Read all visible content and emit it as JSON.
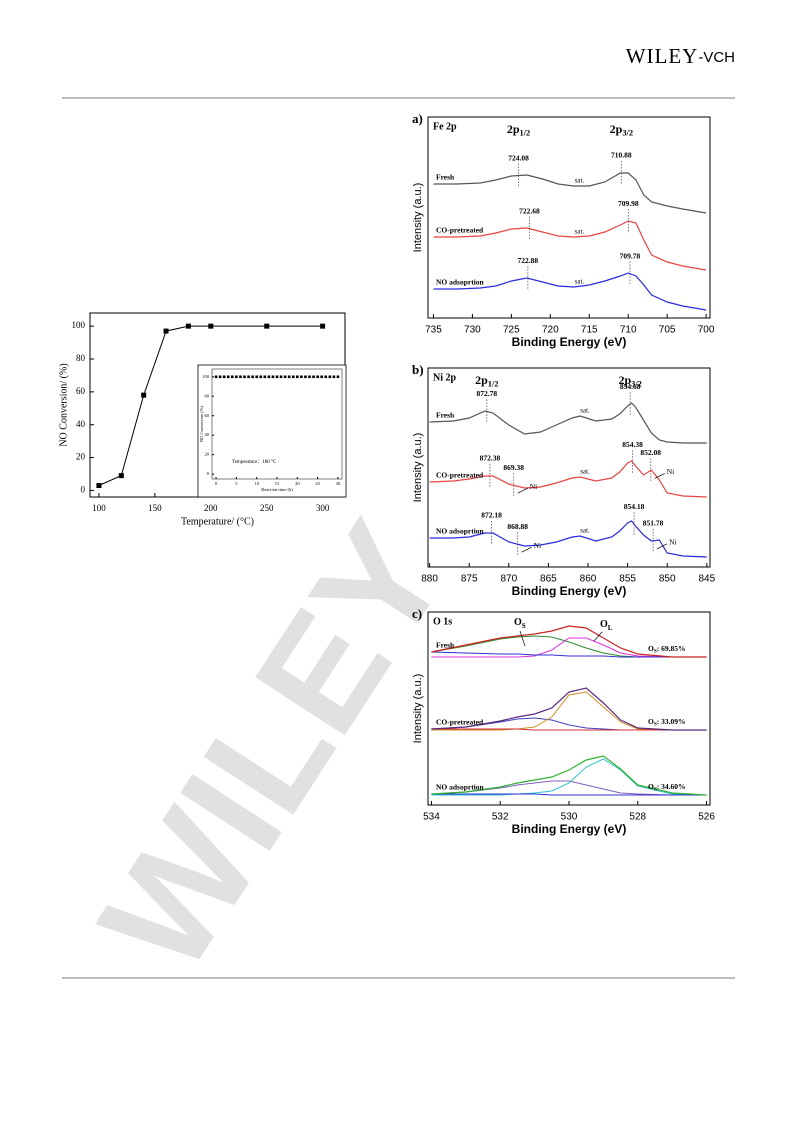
{
  "header": {
    "logo_main": "WILEY",
    "logo_sub": "-VCH"
  },
  "watermark": "WILEY",
  "chart_data": [
    {
      "type": "line",
      "x": [
        100,
        120,
        140,
        160,
        180,
        200,
        250,
        300
      ],
      "values": [
        3,
        9,
        58,
        97,
        100,
        100,
        100,
        100
      ],
      "color": "#000000",
      "marker": "square",
      "xlim": [
        92,
        320
      ],
      "ylim": [
        -4,
        108
      ],
      "xticks": [
        100,
        150,
        200,
        250,
        300
      ],
      "yticks": [
        0,
        20,
        40,
        60,
        80,
        100
      ],
      "xlabel": "Temperature/ (°C)",
      "ylabel": "NO Conversion/ (%)"
    },
    {
      "type": "scatter",
      "x": [
        0,
        1,
        2,
        3,
        4,
        5,
        6,
        7,
        8,
        9,
        10,
        11,
        12,
        13,
        14,
        15,
        16,
        17,
        18,
        19,
        20,
        21,
        22,
        23,
        24,
        25,
        26,
        27,
        28,
        29,
        30
      ],
      "values": [
        100,
        100,
        100,
        100,
        100,
        100,
        100,
        100,
        100,
        100,
        100,
        100,
        100,
        100,
        100,
        100,
        100,
        100,
        100,
        100,
        100,
        100,
        100,
        100,
        100,
        100,
        100,
        100,
        100,
        100,
        100
      ],
      "color": "#000000",
      "marker": "square",
      "xlim": [
        -1,
        31
      ],
      "ylim": [
        -5,
        108
      ],
      "xticks": [
        0,
        5,
        10,
        15,
        20,
        25,
        30
      ],
      "yticks": [
        0,
        20,
        40,
        60,
        80,
        100
      ],
      "xlabel": "Reaction time (h)",
      "ylabel": "NO Conversion (%)",
      "annotation": "Temperature：180 °C"
    },
    {
      "type": "line",
      "panel_label": "a)",
      "title": "Fe 2p",
      "headings": [
        {
          "main": "2p",
          "sub": "1/2"
        },
        {
          "main": "2p",
          "sub": "3/2"
        }
      ],
      "xlim": [
        735.7,
        699.5
      ],
      "ylim": [
        0,
        201
      ],
      "xticks": [
        735,
        730,
        725,
        720,
        715,
        710,
        705,
        700
      ],
      "xlabel": "Binding Energy (eV)",
      "ylabel": "Intensity (a.u.)",
      "sat_label": "sat.",
      "x": [
        735,
        732,
        729,
        727,
        725,
        723,
        721,
        719,
        717,
        715,
        713,
        711,
        710,
        709,
        708,
        707,
        705,
        703,
        700
      ],
      "series": [
        {
          "name": "Fresh",
          "color": "#555555",
          "values": [
            134,
            134,
            135,
            138,
            142,
            143,
            139,
            134,
            132,
            132,
            136,
            145,
            145,
            138,
            123,
            116,
            112,
            109,
            105
          ],
          "peaks": [
            724.08,
            710.88
          ]
        },
        {
          "name": "CO-pretreated",
          "color": "#e84444",
          "values": [
            81,
            81,
            82,
            85,
            89,
            90,
            86,
            82,
            81,
            82,
            86,
            93,
            97,
            95,
            78,
            63,
            56,
            52,
            48
          ],
          "peaks": [
            722.68,
            709.98
          ]
        },
        {
          "name": "NO adsoprtion",
          "color": "#2a2ae0",
          "values": [
            29,
            29,
            30,
            32,
            37,
            40,
            36,
            32,
            31,
            33,
            37,
            42,
            45,
            42,
            33,
            23,
            16,
            12,
            8
          ],
          "peaks": [
            722.88,
            709.78
          ]
        }
      ]
    },
    {
      "type": "line",
      "panel_label": "b)",
      "title": "Ni 2p",
      "headings": [
        {
          "main": "2p",
          "sub": "1/2"
        },
        {
          "main": "2p",
          "sub": "3/2"
        }
      ],
      "xlim": [
        880.2,
        844.6
      ],
      "ylim": [
        0,
        199
      ],
      "xticks": [
        880,
        875,
        870,
        865,
        860,
        855,
        850,
        845
      ],
      "xlabel": "Binding Energy (eV)",
      "ylabel": "Intensity (a.u.)",
      "sat_label": "sat.",
      "minor_label": "Ni",
      "x": [
        880,
        877,
        875,
        873,
        872,
        870,
        868,
        866,
        864,
        862,
        861,
        859,
        857,
        856,
        855,
        854.5,
        854,
        853,
        852,
        851,
        850,
        848,
        845
      ],
      "series": [
        {
          "name": "Fresh",
          "color": "#555555",
          "values": [
            145,
            146,
            149,
            156,
            154,
            142,
            133,
            135,
            142,
            149,
            151,
            146,
            148,
            153,
            161,
            164,
            160,
            147,
            134,
            127,
            125,
            124,
            124
          ],
          "peaks": [
            872.78,
            854.68
          ]
        },
        {
          "name": "CO-pretreated",
          "color": "#e84444",
          "values": [
            85,
            86,
            88,
            91,
            91,
            83,
            79,
            80,
            84,
            89,
            90,
            86,
            89,
            95,
            104,
            106,
            101,
            92,
            97,
            87,
            74,
            71,
            70
          ],
          "peaks": [
            872.38,
            854.38
          ],
          "minor_peaks": [
            869.38,
            852.08
          ]
        },
        {
          "name": "NO adsoprtion",
          "color": "#2a2ae0",
          "values": [
            29,
            29,
            30,
            34,
            34,
            25,
            21,
            22,
            25,
            30,
            31,
            26,
            30,
            36,
            44,
            46,
            41,
            32,
            26,
            27,
            14,
            11,
            10
          ],
          "peaks": [
            872.18,
            854.18
          ],
          "minor_peaks": [
            868.88,
            851.78
          ]
        }
      ]
    },
    {
      "type": "line",
      "panel_label": "c)",
      "title": "O 1s",
      "os_label": {
        "main": "O",
        "sub": "S"
      },
      "ol_label": {
        "main": "O",
        "sub": "L"
      },
      "xlim": [
        534.1,
        525.9
      ],
      "ylim": [
        0,
        193
      ],
      "xticks": [
        534,
        532,
        530,
        528,
        526
      ],
      "xlabel": "Binding Energy (eV)",
      "ylabel": "Intensity (a.u.)",
      "x": [
        534,
        533,
        532,
        531.5,
        531,
        530.5,
        530,
        529.5,
        529,
        528.5,
        528,
        527,
        526
      ],
      "series": [
        {
          "name": "Fresh",
          "color": "#cc2222",
          "values": [
            153,
            160,
            167,
            169,
            171,
            174,
            179,
            177,
            167,
            157,
            151,
            148,
            148
          ],
          "ratio": {
            "main": "O",
            "sub": "S",
            "rest": ": 69.85%"
          },
          "components": [
            {
              "color": "#2e8b2e",
              "values": [
                153,
                159,
                166,
                168,
                169,
                168,
                163,
                157,
                152,
                149,
                148,
                148,
                148
              ]
            },
            {
              "color": "#e030e0",
              "values": [
                148,
                148,
                148,
                148,
                149,
                155,
                167,
                167,
                160,
                152,
                149,
                148,
                148
              ]
            },
            {
              "color": "#3030d0",
              "values": [
                153,
                152,
                151,
                151,
                150,
                150,
                149,
                149,
                149,
                148,
                148,
                148,
                148
              ]
            }
          ]
        },
        {
          "name": "CO-pretreated",
          "color": "#5a2a7a",
          "values": [
            76,
            78,
            84,
            88,
            91,
            97,
            113,
            117,
            102,
            85,
            77,
            75,
            75
          ],
          "ratio": {
            "main": "O",
            "sub": "S",
            "rest": ": 33.09%"
          },
          "components": [
            {
              "color": "#4040c0",
              "values": [
                76,
                78,
                83,
                86,
                87,
                85,
                80,
                77,
                76,
                75,
                75,
                75,
                75
              ]
            },
            {
              "color": "#d09020",
              "values": [
                75,
                75,
                75,
                76,
                78,
                88,
                110,
                113,
                98,
                83,
                76,
                75,
                75
              ]
            },
            {
              "color": "#d03030",
              "values": [
                76,
                76,
                76,
                76,
                75,
                75,
                75,
                75,
                75,
                75,
                75,
                75,
                75
              ]
            }
          ]
        },
        {
          "name": "NO adsoprtion",
          "color": "#30b030",
          "values": [
            11,
            13,
            18,
            22,
            25,
            28,
            35,
            45,
            49,
            36,
            20,
            12,
            10
          ],
          "ratio": {
            "main": "O",
            "sub": "S",
            "rest": ": 34.60%"
          },
          "components": [
            {
              "color": "#8060c0",
              "values": [
                11,
                13,
                17,
                20,
                22,
                24,
                24,
                20,
                16,
                12,
                11,
                10,
                10
              ]
            },
            {
              "color": "#30c0d0",
              "values": [
                10,
                10,
                10,
                11,
                12,
                14,
                22,
                38,
                46,
                35,
                19,
                11,
                10
              ]
            },
            {
              "color": "#3030d0",
              "values": [
                11,
                11,
                11,
                11,
                11,
                10,
                10,
                10,
                10,
                10,
                10,
                10,
                10
              ]
            }
          ]
        }
      ]
    }
  ]
}
